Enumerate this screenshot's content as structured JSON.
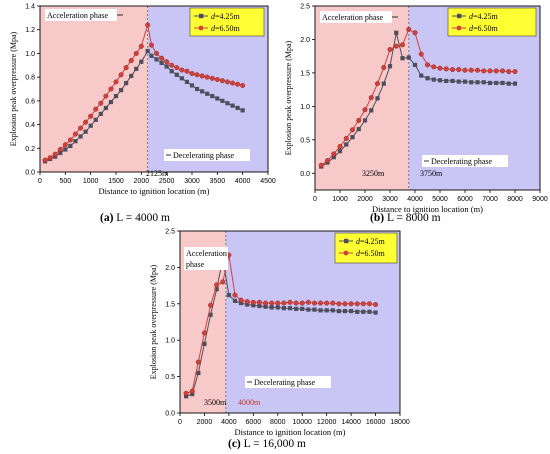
{
  "colors": {
    "accel_bg": "#f7c9c9",
    "decel_bg": "#c9c6f5",
    "series1": "#4d4d5c",
    "series2": "#d0413b",
    "legend_bg": "#ffff33"
  },
  "chart_data": [
    {
      "type": "line",
      "panel": "a",
      "caption_label": "(a)",
      "caption_text": "L = 4000 m",
      "xlabel": "Distance to ignition location (m)",
      "ylabel": "Explosion peak overpressure (Mpa)",
      "xlim": [
        0,
        4500
      ],
      "ylim": [
        0,
        1.4
      ],
      "xticks": [
        "0",
        "500",
        "1000",
        "1500",
        "2000",
        "2500",
        "3000",
        "3500",
        "4000",
        "4500"
      ],
      "yticks": [
        "0.0",
        "0.2",
        "0.4",
        "0.6",
        "0.8",
        "1.0",
        "1.2",
        "1.4"
      ],
      "phase_boundary": 2125,
      "grid": false,
      "legend_position": "top-right",
      "annotations": {
        "accel": "Acceleration phase",
        "decel": "Decelerating phase",
        "marks": [
          "2125m"
        ]
      },
      "series": [
        {
          "name": "d=4.25m",
          "legend_var": "d",
          "legend_rest": "=4.25m",
          "marker": "square",
          "x": [
            100,
            200,
            300,
            400,
            500,
            600,
            700,
            800,
            900,
            1000,
            1100,
            1200,
            1300,
            1400,
            1500,
            1600,
            1700,
            1800,
            1900,
            2000,
            2125,
            2200,
            2300,
            2400,
            2500,
            2600,
            2700,
            2800,
            2900,
            3000,
            3100,
            3200,
            3300,
            3400,
            3500,
            3600,
            3700,
            3800,
            3900,
            4000
          ],
          "values": [
            0.09,
            0.11,
            0.13,
            0.16,
            0.19,
            0.22,
            0.26,
            0.3,
            0.34,
            0.39,
            0.44,
            0.49,
            0.54,
            0.59,
            0.64,
            0.69,
            0.75,
            0.81,
            0.87,
            0.93,
            1.02,
            0.98,
            0.95,
            0.92,
            0.89,
            0.85,
            0.82,
            0.79,
            0.76,
            0.73,
            0.7,
            0.68,
            0.66,
            0.64,
            0.62,
            0.6,
            0.58,
            0.56,
            0.54,
            0.52
          ]
        },
        {
          "name": "d=6.50m",
          "legend_var": "d",
          "legend_rest": "=6.50m",
          "marker": "circle",
          "x": [
            100,
            200,
            300,
            400,
            500,
            600,
            700,
            800,
            900,
            1000,
            1100,
            1200,
            1300,
            1400,
            1500,
            1600,
            1700,
            1800,
            1900,
            2000,
            2125,
            2200,
            2300,
            2400,
            2500,
            2600,
            2700,
            2800,
            2900,
            3000,
            3100,
            3200,
            3300,
            3400,
            3500,
            3600,
            3700,
            3800,
            3900,
            4000
          ],
          "values": [
            0.1,
            0.12,
            0.15,
            0.19,
            0.23,
            0.27,
            0.32,
            0.37,
            0.42,
            0.47,
            0.53,
            0.58,
            0.64,
            0.7,
            0.76,
            0.82,
            0.88,
            0.94,
            1.0,
            1.06,
            1.24,
            1.07,
            1.0,
            0.96,
            0.93,
            0.9,
            0.88,
            0.86,
            0.85,
            0.83,
            0.82,
            0.81,
            0.8,
            0.79,
            0.78,
            0.77,
            0.76,
            0.75,
            0.74,
            0.73
          ]
        }
      ]
    },
    {
      "type": "line",
      "panel": "b",
      "caption_label": "(b)",
      "caption_text": "L = 8000 m",
      "xlabel": "Distance to ignition location (m)",
      "ylabel": "Explosion peak overpressure (Mpa)",
      "xlim": [
        0,
        9000
      ],
      "ylim": [
        -0.25,
        2.5
      ],
      "xticks": [
        "0",
        "1000",
        "2000",
        "3000",
        "4000",
        "5000",
        "6000",
        "7000",
        "8000",
        "9000"
      ],
      "yticks": [
        "0.0",
        "0.5",
        "1.0",
        "1.5",
        "2.0",
        "2.5"
      ],
      "phase_boundary": 3750,
      "grid": false,
      "legend_position": "top-right",
      "annotations": {
        "accel": "Acceleration phase",
        "decel": "Decelerating phase",
        "marks": [
          "3250m",
          "3750m"
        ]
      },
      "series": [
        {
          "name": "d=4.25m",
          "legend_var": "d",
          "legend_rest": "=4.25m",
          "marker": "square",
          "x": [
            250,
            500,
            750,
            1000,
            1250,
            1500,
            1750,
            2000,
            2250,
            2500,
            2750,
            3000,
            3250,
            3500,
            3750,
            4000,
            4250,
            4500,
            4750,
            5000,
            5250,
            5500,
            5750,
            6000,
            6250,
            6500,
            6750,
            7000,
            7250,
            7500,
            7750,
            8000
          ],
          "values": [
            0.1,
            0.16,
            0.24,
            0.33,
            0.43,
            0.54,
            0.66,
            0.79,
            0.94,
            1.12,
            1.34,
            1.6,
            2.1,
            1.72,
            1.73,
            1.62,
            1.46,
            1.42,
            1.4,
            1.39,
            1.38,
            1.38,
            1.37,
            1.37,
            1.36,
            1.36,
            1.36,
            1.35,
            1.35,
            1.35,
            1.34,
            1.34
          ]
        },
        {
          "name": "d=6.50m",
          "legend_var": "d",
          "legend_rest": "=6.50m",
          "marker": "circle",
          "x": [
            250,
            500,
            750,
            1000,
            1250,
            1500,
            1750,
            2000,
            2250,
            2500,
            2750,
            3000,
            3250,
            3500,
            3750,
            4000,
            4250,
            4500,
            4750,
            5000,
            5250,
            5500,
            5750,
            6000,
            6250,
            6500,
            6750,
            7000,
            7250,
            7500,
            7750,
            8000
          ],
          "values": [
            0.12,
            0.19,
            0.29,
            0.4,
            0.52,
            0.65,
            0.79,
            0.95,
            1.13,
            1.34,
            1.58,
            1.85,
            1.9,
            1.92,
            2.15,
            2.1,
            1.78,
            1.62,
            1.59,
            1.57,
            1.56,
            1.55,
            1.55,
            1.54,
            1.54,
            1.54,
            1.53,
            1.53,
            1.53,
            1.53,
            1.52,
            1.52
          ]
        }
      ]
    },
    {
      "type": "line",
      "panel": "c",
      "caption_label": "(c)",
      "caption_text": "L = 16,000 m",
      "xlabel": "Distance to ignition location (m)",
      "ylabel": "Explosion peak overpressure (Mpa)",
      "xlim": [
        0,
        18000
      ],
      "ylim": [
        0,
        2.5
      ],
      "xticks": [
        "0",
        "2000",
        "4000",
        "6000",
        "8000",
        "10000",
        "12000",
        "14000",
        "16000",
        "18000"
      ],
      "yticks": [
        "0.0",
        "0.5",
        "1.0",
        "1.5",
        "2.0",
        "2.5"
      ],
      "phase_boundary": 3750,
      "grid": false,
      "legend_position": "top-right",
      "annotations": {
        "accel": "Acceleration\nphase",
        "decel": "Decelerating phase",
        "marks": [
          "3500m",
          "4000m"
        ]
      },
      "series": [
        {
          "name": "d=4.25m",
          "legend_var": "d",
          "legend_rest": "=4.25m",
          "marker": "square",
          "x": [
            500,
            1000,
            1500,
            2000,
            2500,
            3000,
            3500,
            4000,
            4500,
            5000,
            5500,
            6000,
            6500,
            7000,
            7500,
            8000,
            8500,
            9000,
            9500,
            10000,
            10500,
            11000,
            11500,
            12000,
            12500,
            13000,
            13500,
            14000,
            14500,
            15000,
            15500,
            16000
          ],
          "values": [
            0.23,
            0.26,
            0.55,
            0.95,
            1.35,
            1.7,
            2.12,
            1.62,
            1.54,
            1.51,
            1.49,
            1.48,
            1.47,
            1.46,
            1.45,
            1.45,
            1.44,
            1.44,
            1.43,
            1.43,
            1.42,
            1.42,
            1.41,
            1.41,
            1.41,
            1.4,
            1.4,
            1.4,
            1.39,
            1.39,
            1.39,
            1.38
          ]
        },
        {
          "name": "d=6.50m",
          "legend_var": "d",
          "legend_rest": "=6.50m",
          "marker": "circle",
          "x": [
            500,
            1000,
            1500,
            2000,
            2500,
            3000,
            3500,
            4000,
            4500,
            5000,
            5500,
            6000,
            6500,
            7000,
            7500,
            8000,
            8500,
            9000,
            9500,
            10000,
            10500,
            11000,
            11500,
            12000,
            12500,
            13000,
            13500,
            14000,
            14500,
            15000,
            15500,
            16000
          ],
          "values": [
            0.27,
            0.3,
            0.7,
            1.1,
            1.48,
            1.76,
            1.8,
            2.17,
            1.62,
            1.55,
            1.53,
            1.52,
            1.52,
            1.51,
            1.51,
            1.51,
            1.51,
            1.52,
            1.51,
            1.51,
            1.52,
            1.51,
            1.51,
            1.51,
            1.51,
            1.5,
            1.5,
            1.5,
            1.5,
            1.5,
            1.5,
            1.49
          ]
        }
      ]
    }
  ]
}
